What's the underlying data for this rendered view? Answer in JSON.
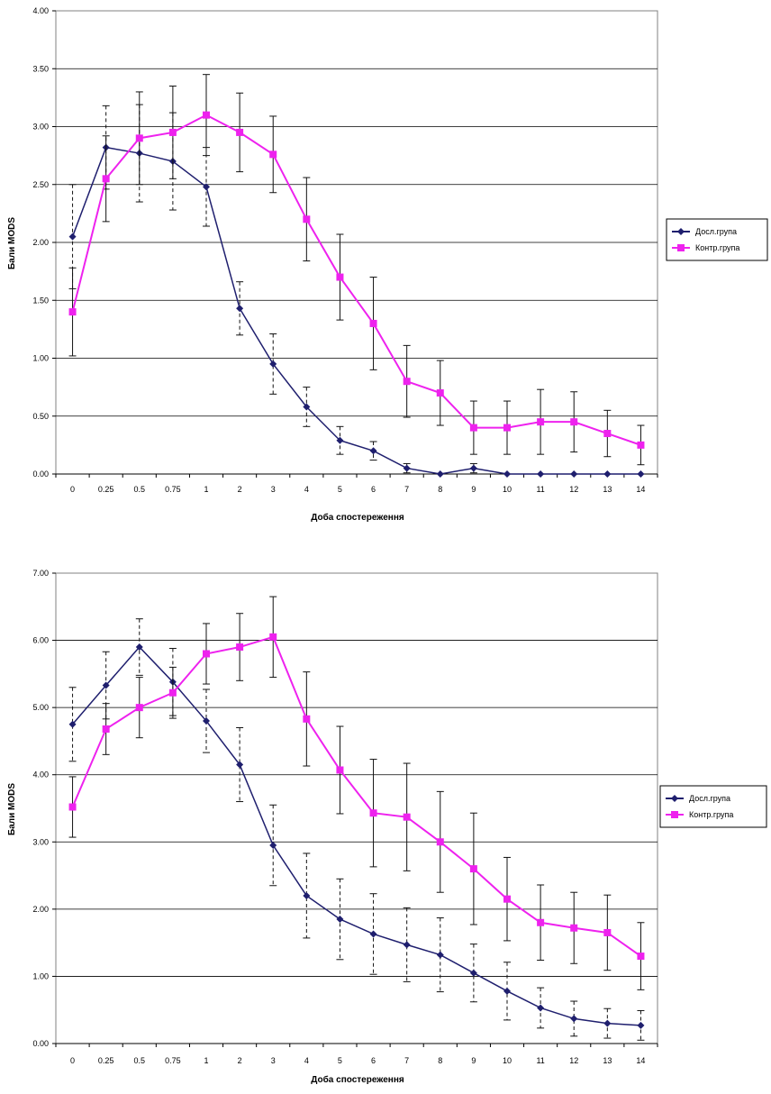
{
  "chart_data": [
    {
      "type": "line",
      "xlabel": "Доба спостереження",
      "ylabel": "Бали MODS",
      "ylim": [
        0,
        4
      ],
      "yticks": [
        "0.00",
        "0.50",
        "1.00",
        "1.50",
        "2.00",
        "2.50",
        "3.00",
        "3.50",
        "4.00"
      ],
      "yticks_values": [
        0,
        0.5,
        1,
        1.5,
        2,
        2.5,
        3,
        3.5,
        4
      ],
      "categories": [
        "0",
        "0.25",
        "0.5",
        "0.75",
        "1",
        "2",
        "3",
        "4",
        "5",
        "6",
        "7",
        "8",
        "9",
        "10",
        "11",
        "12",
        "13",
        "14"
      ],
      "grid": true,
      "legend_position": "right",
      "series": [
        {
          "name": "Досл.група",
          "color": "#1f1f6e",
          "marker": "diamond",
          "error_style": "dashed",
          "values": [
            2.05,
            2.82,
            2.77,
            2.7,
            2.48,
            1.43,
            0.95,
            0.58,
            0.29,
            0.2,
            0.05,
            0.0,
            0.05,
            0.0,
            0.0,
            0.0,
            0.0,
            0.0
          ],
          "errors": [
            0.45,
            0.36,
            0.42,
            0.42,
            0.34,
            0.23,
            0.26,
            0.17,
            0.12,
            0.08,
            0.04,
            0.0,
            0.04,
            0.0,
            0.0,
            0.0,
            0.0,
            0.0
          ]
        },
        {
          "name": "Контр.група",
          "color": "#ee22ee",
          "marker": "square",
          "error_style": "solid",
          "values": [
            1.4,
            2.55,
            2.9,
            2.95,
            3.1,
            2.95,
            2.76,
            2.2,
            1.7,
            1.3,
            0.8,
            0.7,
            0.4,
            0.4,
            0.45,
            0.45,
            0.35,
            0.25
          ],
          "errors": [
            0.38,
            0.37,
            0.4,
            0.4,
            0.35,
            0.34,
            0.33,
            0.36,
            0.37,
            0.4,
            0.31,
            0.28,
            0.23,
            0.23,
            0.28,
            0.26,
            0.2,
            0.17
          ]
        }
      ]
    },
    {
      "type": "line",
      "xlabel": "Доба спостереження",
      "ylabel": "Бали MODS",
      "ylim": [
        0,
        7
      ],
      "yticks": [
        "0.00",
        "1.00",
        "2.00",
        "3.00",
        "4.00",
        "5.00",
        "6.00",
        "7.00"
      ],
      "yticks_values": [
        0,
        1,
        2,
        3,
        4,
        5,
        6,
        7
      ],
      "categories": [
        "0",
        "0.25",
        "0.5",
        "0.75",
        "1",
        "2",
        "3",
        "4",
        "5",
        "6",
        "7",
        "8",
        "9",
        "10",
        "11",
        "12",
        "13",
        "14"
      ],
      "grid": true,
      "legend_position": "right",
      "series": [
        {
          "name": "Досл.група",
          "color": "#1f1f6e",
          "marker": "diamond",
          "error_style": "dashed",
          "values": [
            4.75,
            5.33,
            5.9,
            5.38,
            4.8,
            4.15,
            2.95,
            2.2,
            1.85,
            1.63,
            1.47,
            1.32,
            1.05,
            0.78,
            0.53,
            0.37,
            0.3,
            0.27
          ],
          "errors": [
            0.55,
            0.5,
            0.42,
            0.5,
            0.47,
            0.55,
            0.6,
            0.63,
            0.6,
            0.6,
            0.55,
            0.55,
            0.43,
            0.43,
            0.3,
            0.26,
            0.22,
            0.22
          ]
        },
        {
          "name": "Контр.група",
          "color": "#ee22ee",
          "marker": "square",
          "error_style": "solid",
          "values": [
            3.52,
            4.68,
            5.0,
            5.22,
            5.8,
            5.9,
            6.05,
            4.83,
            4.07,
            3.43,
            3.37,
            3.0,
            2.6,
            2.15,
            1.8,
            1.72,
            1.65,
            1.3
          ],
          "errors": [
            0.45,
            0.38,
            0.45,
            0.38,
            0.45,
            0.5,
            0.6,
            0.7,
            0.65,
            0.8,
            0.8,
            0.75,
            0.83,
            0.62,
            0.56,
            0.53,
            0.56,
            0.5
          ]
        }
      ]
    }
  ]
}
